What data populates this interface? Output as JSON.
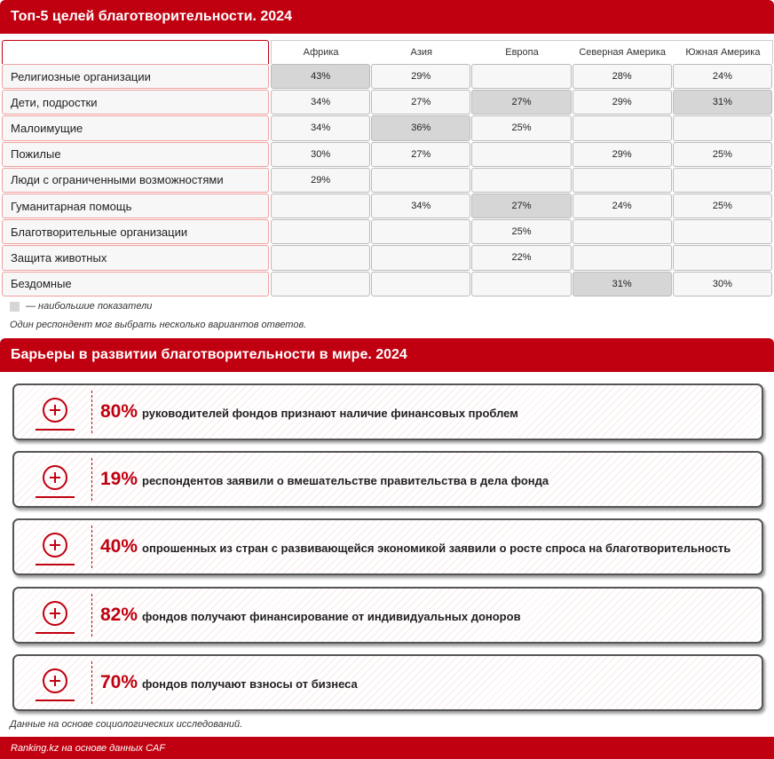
{
  "top_section": {
    "title": "Топ-5 целей благотворительности. 2024",
    "table": {
      "columns": [
        "Африка",
        "Азия",
        "Европа",
        "Северная Америка",
        "Южная Америка"
      ],
      "rows": [
        {
          "label": "Религиозные организации",
          "cells": [
            {
              "text": "43%",
              "highlight": true
            },
            {
              "text": "29%"
            },
            null,
            {
              "text": "28%"
            },
            {
              "text": "24%"
            }
          ]
        },
        {
          "label": "Дети, подростки",
          "cells": [
            {
              "text": "34%"
            },
            {
              "text": "27%"
            },
            {
              "text": "27%",
              "highlight": true
            },
            {
              "text": "29%"
            },
            {
              "text": "31%",
              "highlight": true
            }
          ]
        },
        {
          "label": "Малоимущие",
          "cells": [
            {
              "text": "34%"
            },
            {
              "text": "36%",
              "highlight": true
            },
            {
              "text": "25%"
            },
            null,
            null
          ]
        },
        {
          "label": "Пожилые",
          "cells": [
            {
              "text": "30%"
            },
            {
              "text": "27%"
            },
            null,
            {
              "text": "29%"
            },
            {
              "text": "25%"
            }
          ]
        },
        {
          "label": "Люди с ограниченными возможностями",
          "cells": [
            {
              "text": "29%"
            },
            null,
            null,
            null,
            null
          ]
        },
        {
          "label": "Гуманитарная помощь",
          "cells": [
            null,
            {
              "text": "34%"
            },
            {
              "text": "27%",
              "highlight": true
            },
            {
              "text": "24%"
            },
            {
              "text": "25%"
            }
          ]
        },
        {
          "label": "Благотворительные организации",
          "cells": [
            null,
            null,
            {
              "text": "25%"
            },
            null,
            null
          ]
        },
        {
          "label": "Защита животных",
          "cells": [
            null,
            null,
            {
              "text": "22%"
            },
            null,
            null
          ]
        },
        {
          "label": "Бездомные",
          "cells": [
            null,
            null,
            null,
            {
              "text": "31%",
              "highlight": true
            },
            {
              "text": "30%"
            }
          ]
        }
      ]
    },
    "legend": "— наибольшие показатели",
    "note": "Один респондент мог выбрать несколько вариантов ответов."
  },
  "bottom_section": {
    "title": "Барьеры в развитии благотворительности в мире. 2024",
    "items": [
      {
        "value": "80%",
        "text": "руководителей фондов признают наличие финансовых проблем"
      },
      {
        "value": "19%",
        "text": "респондентов заявили о вмешательстве правительства в дела фонда"
      },
      {
        "value": "40%",
        "text": "опрошенных из стран с развивающейся экономикой заявили о росте спроса на благотворительность"
      },
      {
        "value": "82%",
        "text": "фондов получают финансирование от индивидуальных доноров"
      },
      {
        "value": "70%",
        "text": "фондов получают взносы от бизнеса"
      }
    ],
    "footnote": "Данные на основе социологических исследований."
  },
  "source": "Ranking.kz на основе данных CAF"
}
